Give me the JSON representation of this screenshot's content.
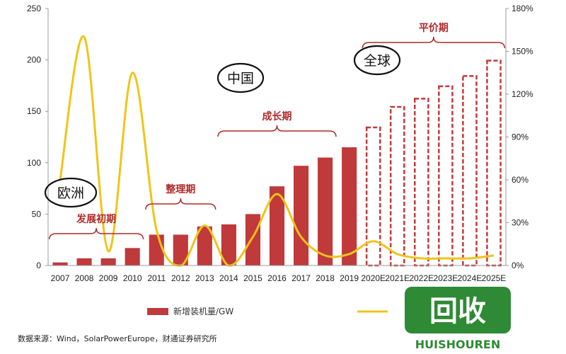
{
  "chart_data": {
    "type": "bar",
    "categories": [
      "2007",
      "2008",
      "2009",
      "2010",
      "2011",
      "2012",
      "2013",
      "2014",
      "2015",
      "2016",
      "2017",
      "2018",
      "2019",
      "2020E",
      "2021E",
      "2022E",
      "2023E",
      "2024E",
      "2025E"
    ],
    "series": [
      {
        "name": "新增装机量/GW",
        "type": "bar",
        "axis": "left",
        "values": [
          3,
          7,
          7,
          17,
          30,
          30,
          38,
          40,
          50,
          77,
          97,
          105,
          115,
          135,
          155,
          163,
          175,
          185,
          200
        ],
        "estimate_from_index": 13,
        "color": "#c0393b"
      },
      {
        "name": "",
        "type": "line",
        "axis": "right",
        "values": [
          60,
          160,
          10,
          135,
          25,
          0,
          28,
          0,
          20,
          50,
          20,
          7,
          8,
          17,
          8,
          5,
          5,
          5,
          7
        ],
        "color": "#f0c419"
      }
    ],
    "y_left": {
      "min": 0,
      "max": 250,
      "ticks": [
        0,
        50,
        100,
        150,
        200,
        250
      ]
    },
    "y_right": {
      "min": 0,
      "max": 180,
      "ticks": [
        "0%",
        "30%",
        "60%",
        "90%",
        "120%",
        "150%",
        "180%"
      ]
    },
    "phases": [
      {
        "label": "发展初期",
        "from": "2007",
        "to": "2010"
      },
      {
        "label": "整理期",
        "from": "2011",
        "to": "2013"
      },
      {
        "label": "成长期",
        "from": "2014",
        "to": "2018"
      },
      {
        "label": "平价期",
        "from": "2020E",
        "to": "2025E"
      }
    ],
    "regions": [
      {
        "label": "欧洲"
      },
      {
        "label": "中国"
      },
      {
        "label": "全球"
      }
    ],
    "source": "数据来源：Wind，SolarPowerEurope，财通证券研究所"
  },
  "watermark": {
    "text_big": "回收",
    "text_small": "HUISHOUREN"
  },
  "colors": {
    "bar": "#c0393b",
    "line": "#f0c419",
    "phase": "#b02a2a",
    "watermark_green": "#2e8a34"
  }
}
